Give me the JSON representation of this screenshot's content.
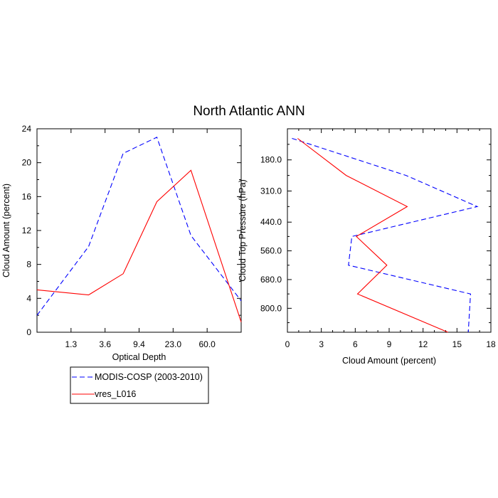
{
  "title": "North Atlantic ANN",
  "chart_data": [
    {
      "type": "line",
      "xlabel": "Optical Depth",
      "ylabel": "Cloud Amount (percent)",
      "x_tick_labels": [
        "1.3",
        "3.6",
        "9.4",
        "23.0",
        "60.0"
      ],
      "y_tick_labels": [
        "0",
        "4",
        "8",
        "12",
        "16",
        "20",
        "24"
      ],
      "ylim": [
        0,
        24
      ],
      "grid": false,
      "series": [
        {
          "name": "MODIS-COSP (2003-2010)",
          "color": "#0000ff",
          "dash": "dashed",
          "x": [
            0.3,
            2.2,
            6.0,
            15.0,
            38.0,
            100.0
          ],
          "y": [
            2.0,
            10.1,
            21.1,
            23.0,
            11.4,
            3.7
          ]
        },
        {
          "name": "vres_L016",
          "color": "#ff0000",
          "dash": "solid",
          "x": [
            0.3,
            2.2,
            6.0,
            15.0,
            38.0,
            100.0
          ],
          "y": [
            5.0,
            4.4,
            6.9,
            15.4,
            19.1,
            1.2
          ]
        }
      ]
    },
    {
      "type": "line",
      "xlabel": "Cloud Amount (percent)",
      "ylabel": "Cloud Top Pressure (hPa)",
      "x_tick_labels": [
        "0",
        "3",
        "6",
        "9",
        "12",
        "15",
        "18"
      ],
      "y_tick_labels": [
        "180.0",
        "310.0",
        "440.0",
        "560.0",
        "680.0",
        "800.0"
      ],
      "xlim": [
        0,
        18
      ],
      "ylim": [
        50,
        900
      ],
      "grid": false,
      "series": [
        {
          "name": "MODIS-COSP (2003-2010)",
          "color": "#0000ff",
          "dash": "dashed",
          "pressure": [
            90,
            245,
            375,
            500,
            620,
            740,
            900
          ],
          "values": [
            0.4,
            10.5,
            16.8,
            5.7,
            5.4,
            16.2,
            16.0
          ]
        },
        {
          "name": "vres_L016",
          "color": "#ff0000",
          "dash": "solid",
          "pressure": [
            90,
            245,
            375,
            500,
            620,
            740,
            900
          ],
          "values": [
            0.9,
            5.2,
            10.6,
            6.1,
            8.8,
            6.2,
            14.2
          ]
        }
      ]
    }
  ],
  "legend": {
    "placement": "bottom-left",
    "entries": [
      "MODIS-COSP (2003-2010)",
      "vres_L016"
    ]
  }
}
